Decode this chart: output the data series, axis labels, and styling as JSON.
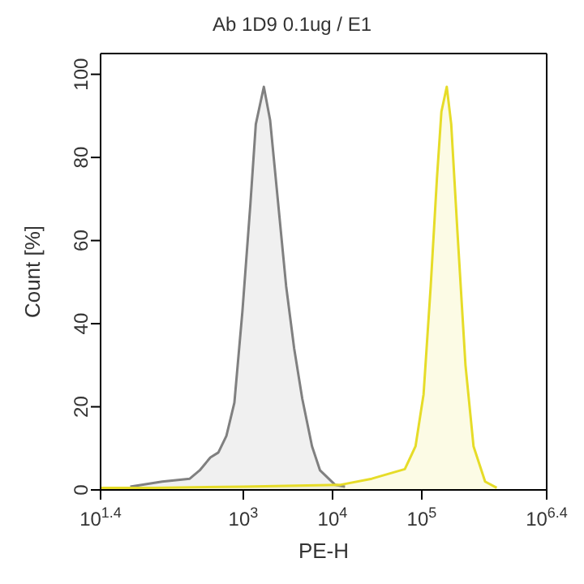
{
  "chart_data": {
    "type": "area",
    "title": "Ab 1D9 0.1ug / E1",
    "xlabel": "PE-H",
    "ylabel": "Count [%]",
    "log": "x",
    "xlim": [
      25.12,
      2511886
    ],
    "xticks": [
      {
        "value": 25.12,
        "label": "10$^{1.4}$"
      },
      {
        "value": 1000,
        "label": "10$^{3}$"
      },
      {
        "value": 10000,
        "label": "10$^{4}$"
      },
      {
        "value": 100000,
        "label": "10$^{5}$"
      },
      {
        "value": 2511886,
        "label": "10$^{6.4}$"
      }
    ],
    "ylim": [
      0,
      105
    ],
    "yticks": [
      0,
      20,
      40,
      60,
      80,
      100
    ],
    "series": [
      {
        "color": "#808080",
        "x": [
          54,
          123,
          251,
          324,
          427,
          525,
          646,
          794,
          977,
          1202,
          1380,
          1698,
          1995,
          2455,
          3020,
          3715,
          4571,
          5888,
          7244,
          10715,
          13804
        ],
        "values": [
          0.8,
          2,
          2.7,
          4.7,
          7.8,
          9,
          13,
          21,
          43,
          69,
          88,
          97,
          89,
          69,
          49,
          34,
          22,
          10.5,
          4.7,
          1.2,
          0.8
        ]
      },
      {
        "color": "#e6dc28",
        "x": [
          25.12,
          100,
          1000,
          12023,
          27542,
          64565,
          85114,
          104713,
          125893,
          147911,
          165959,
          190546,
          213796,
          251189,
          309030,
          380189,
          512861,
          691831
        ],
        "values": [
          0.5,
          0.5,
          0.8,
          1.2,
          2.7,
          5,
          10.5,
          23,
          49,
          75,
          91,
          97,
          88,
          62,
          30,
          10.5,
          2,
          0.5
        ]
      }
    ]
  }
}
